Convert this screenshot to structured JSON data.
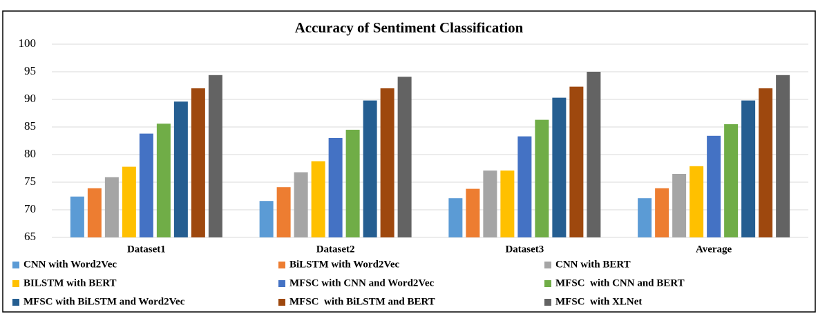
{
  "chart_data": {
    "type": "bar",
    "title": "Accuracy of Sentiment Classification",
    "categories": [
      "Dataset1",
      "Dataset2",
      "Dataset3",
      "Average"
    ],
    "series": [
      {
        "name": "CNN with Word2Vec",
        "color": "#5b9bd5",
        "values": [
          72.4,
          71.6,
          72.1,
          72.1
        ]
      },
      {
        "name": "BiLSTM with Word2Vec",
        "color": "#ed7d31",
        "values": [
          73.9,
          74.1,
          73.8,
          73.9
        ]
      },
      {
        "name": "CNN with BERT",
        "color": "#a5a5a5",
        "values": [
          75.9,
          76.8,
          77.1,
          76.5
        ]
      },
      {
        "name": "BILSTM with BERT",
        "color": "#ffc000",
        "values": [
          77.8,
          78.8,
          77.1,
          77.9
        ]
      },
      {
        "name": "MFSC with CNN and Word2Vec",
        "color": "#4472c4",
        "values": [
          83.8,
          83.0,
          83.3,
          83.4
        ]
      },
      {
        "name": "MFSC  with CNN and BERT",
        "color": "#70ad47",
        "values": [
          85.6,
          84.5,
          86.3,
          85.5
        ]
      },
      {
        "name": "MFSC with BiLSTM and Word2Vec",
        "color": "#255e91",
        "values": [
          89.6,
          89.8,
          90.3,
          89.8
        ]
      },
      {
        "name": "MFSC  with BiLSTM and BERT",
        "color": "#9e480e",
        "values": [
          92.0,
          92.0,
          92.3,
          92.0
        ]
      },
      {
        "name": "MFSC  with XLNet",
        "color": "#636363",
        "values": [
          94.4,
          94.1,
          95.0,
          94.4
        ]
      }
    ],
    "ylim": [
      65,
      100
    ],
    "yticks": [
      65,
      70,
      75,
      80,
      85,
      90,
      95,
      100
    ],
    "grid": true
  }
}
